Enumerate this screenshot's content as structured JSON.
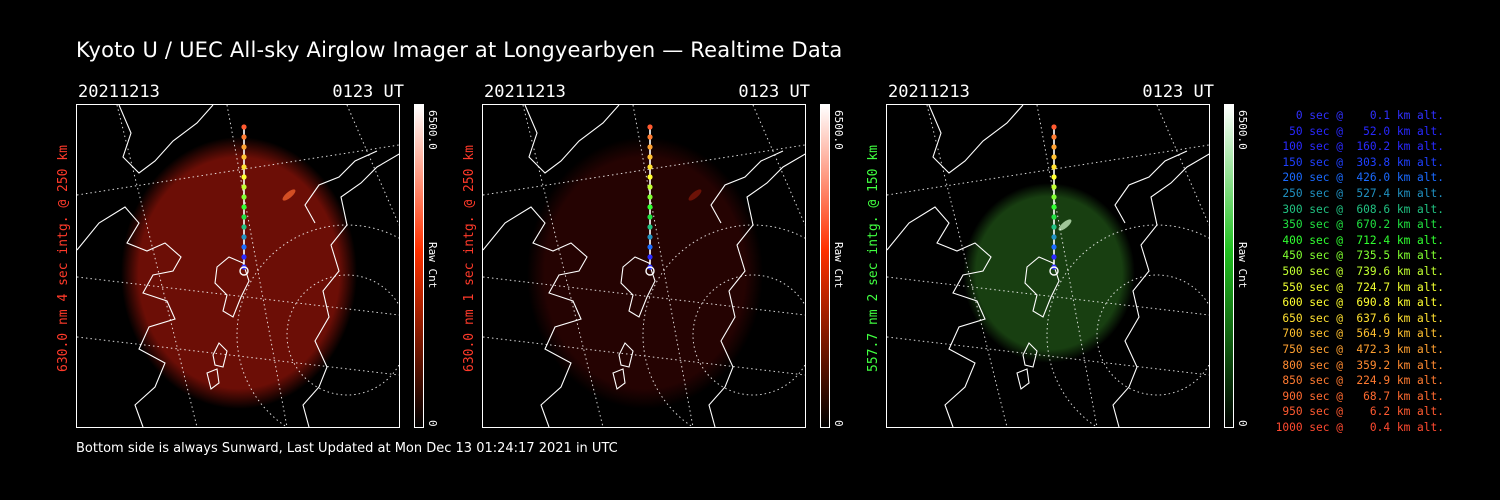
{
  "title": "Kyoto U / UEC All-sky Airglow Imager at Longyearbyen — Realtime Data",
  "panels": [
    {
      "date": "20211213",
      "time": "0123 UT",
      "ylabel": "630.0 nm 4 sec intg. @ 250 km",
      "label_color": "#ff3a2a",
      "glow": "#8a1208",
      "glow_opacity": 0.78,
      "cbar_top": "#ffffff",
      "cbar_mid": "#ff3000",
      "cbar_bot": "#000000",
      "cbar_max": "6500.0",
      "cbar_min": "0",
      "cbar_unit": "Raw Cnt",
      "spot": "#ff6a30"
    },
    {
      "date": "20211213",
      "time": "0123 UT",
      "ylabel": "630.0 nm 1 sec intg. @ 250 km",
      "label_color": "#ff3a2a",
      "glow": "#4a0604",
      "glow_opacity": 0.5,
      "cbar_top": "#ffffff",
      "cbar_mid": "#ff3000",
      "cbar_bot": "#000000",
      "cbar_max": "6500.0",
      "cbar_min": "0",
      "cbar_unit": "Raw Cnt",
      "spot": "#8a1a0a"
    },
    {
      "date": "20211213",
      "time": "0123 UT",
      "ylabel": "557.7 nm 2 sec intg. @ 150 km",
      "label_color": "#40ff40",
      "glow": "#1c4a14",
      "glow_opacity": 0.85,
      "cbar_top": "#ffffff",
      "cbar_mid": "#20c020",
      "cbar_bot": "#000000",
      "cbar_max": "6500.0",
      "cbar_min": "0",
      "cbar_unit": "Raw Cnt",
      "spot": "#d8ffd0"
    }
  ],
  "legend": [
    {
      "text": "0 sec @    0.1 km alt.",
      "color": "#3030ff"
    },
    {
      "text": "50 sec @   52.0 km alt.",
      "color": "#2828ff"
    },
    {
      "text": "100 sec @  160.2 km alt.",
      "color": "#2a2aff"
    },
    {
      "text": "150 sec @  303.8 km alt.",
      "color": "#1f40ff"
    },
    {
      "text": "200 sec @  426.0 km alt.",
      "color": "#1a6aff"
    },
    {
      "text": "250 sec @  527.4 km alt.",
      "color": "#2090c0"
    },
    {
      "text": "300 sec @  608.6 km alt.",
      "color": "#20c080"
    },
    {
      "text": "350 sec @  670.2 km alt.",
      "color": "#20e040"
    },
    {
      "text": "400 sec @  712.4 km alt.",
      "color": "#30ff30"
    },
    {
      "text": "450 sec @  735.5 km alt.",
      "color": "#80ff30"
    },
    {
      "text": "500 sec @  739.6 km alt.",
      "color": "#c0ff30"
    },
    {
      "text": "550 sec @  724.7 km alt.",
      "color": "#f0ff30"
    },
    {
      "text": "600 sec @  690.8 km alt.",
      "color": "#ffff30"
    },
    {
      "text": "650 sec @  637.6 km alt.",
      "color": "#ffe030"
    },
    {
      "text": "700 sec @  564.9 km alt.",
      "color": "#ffc030"
    },
    {
      "text": "750 sec @  472.3 km alt.",
      "color": "#ffa030"
    },
    {
      "text": "800 sec @  359.2 km alt.",
      "color": "#ff8a30"
    },
    {
      "text": "850 sec @  224.9 km alt.",
      "color": "#ff7a30"
    },
    {
      "text": "900 sec @   68.7 km alt.",
      "color": "#ff6a30"
    },
    {
      "text": "950 sec @    6.2 km alt.",
      "color": "#ff5a30"
    },
    {
      "text": "1000 sec @    0.4 km alt.",
      "color": "#ff4a30"
    }
  ],
  "footer": "Bottom side is always Sunward, Last Updated at Mon Dec 13 01:24:17 2021 in UTC"
}
